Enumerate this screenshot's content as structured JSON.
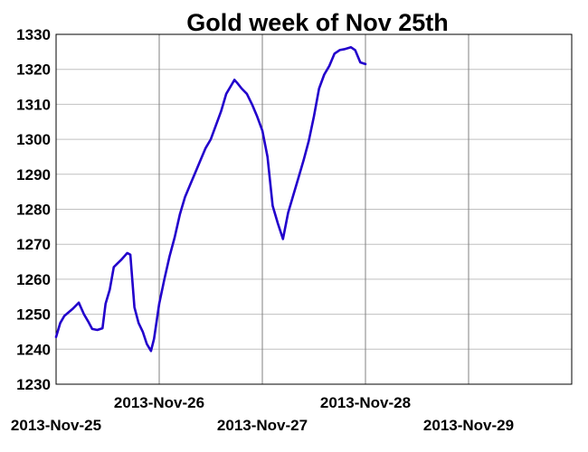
{
  "chart_data": {
    "type": "line",
    "title": "Gold week of Nov 25th",
    "xlabel": "",
    "ylabel": "",
    "ylim": [
      1230,
      1330
    ],
    "yticks": [
      1230,
      1240,
      1250,
      1260,
      1270,
      1280,
      1290,
      1300,
      1310,
      1320,
      1330
    ],
    "xlim": [
      0,
      5
    ],
    "x_tick_labels": [
      {
        "label": "2013-Nov-25",
        "x": 0
      },
      {
        "label": "2013-Nov-26",
        "x": 1
      },
      {
        "label": "2013-Nov-27",
        "x": 2
      },
      {
        "label": "2013-Nov-28",
        "x": 3
      },
      {
        "label": "2013-Nov-29",
        "x": 4
      }
    ],
    "grid": true,
    "legend": "none",
    "line_color": "#2200cc",
    "series": [
      {
        "values": [
          [
            0.0,
            1243.5
          ],
          [
            0.04,
            1247.5
          ],
          [
            0.08,
            1249.5
          ],
          [
            0.16,
            1251.5
          ],
          [
            0.22,
            1253.3
          ],
          [
            0.27,
            1250.0
          ],
          [
            0.31,
            1248.0
          ],
          [
            0.35,
            1245.8
          ],
          [
            0.4,
            1245.5
          ],
          [
            0.45,
            1246.0
          ],
          [
            0.48,
            1253.0
          ],
          [
            0.52,
            1257.0
          ],
          [
            0.56,
            1263.5
          ],
          [
            0.63,
            1265.5
          ],
          [
            0.69,
            1267.5
          ],
          [
            0.72,
            1267.0
          ],
          [
            0.76,
            1252.0
          ],
          [
            0.8,
            1247.5
          ],
          [
            0.84,
            1245.0
          ],
          [
            0.88,
            1241.5
          ],
          [
            0.92,
            1239.5
          ],
          [
            0.95,
            1243.0
          ],
          [
            1.0,
            1253.0
          ],
          [
            1.05,
            1260.0
          ],
          [
            1.1,
            1266.5
          ],
          [
            1.15,
            1272.0
          ],
          [
            1.2,
            1278.5
          ],
          [
            1.25,
            1283.5
          ],
          [
            1.3,
            1287.0
          ],
          [
            1.35,
            1290.5
          ],
          [
            1.4,
            1294.0
          ],
          [
            1.45,
            1297.5
          ],
          [
            1.5,
            1300.0
          ],
          [
            1.55,
            1304.0
          ],
          [
            1.6,
            1308.0
          ],
          [
            1.65,
            1313.0
          ],
          [
            1.7,
            1315.5
          ],
          [
            1.73,
            1317.0
          ],
          [
            1.76,
            1316.0
          ],
          [
            1.8,
            1314.5
          ],
          [
            1.85,
            1313.0
          ],
          [
            1.9,
            1310.0
          ],
          [
            1.95,
            1306.5
          ],
          [
            2.0,
            1302.5
          ],
          [
            2.05,
            1295.0
          ],
          [
            2.1,
            1281.0
          ],
          [
            2.15,
            1276.0
          ],
          [
            2.2,
            1271.5
          ],
          [
            2.25,
            1279.0
          ],
          [
            2.3,
            1284.0
          ],
          [
            2.35,
            1289.0
          ],
          [
            2.4,
            1294.0
          ],
          [
            2.45,
            1299.5
          ],
          [
            2.5,
            1306.5
          ],
          [
            2.55,
            1314.5
          ],
          [
            2.6,
            1318.5
          ],
          [
            2.65,
            1321.0
          ],
          [
            2.7,
            1324.5
          ],
          [
            2.75,
            1325.5
          ],
          [
            2.8,
            1325.8
          ],
          [
            2.86,
            1326.3
          ],
          [
            2.9,
            1325.5
          ],
          [
            2.95,
            1322.0
          ],
          [
            3.0,
            1321.5
          ]
        ]
      }
    ]
  }
}
